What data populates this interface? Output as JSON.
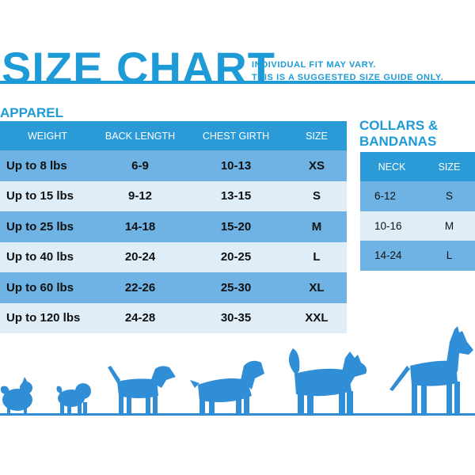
{
  "title": "SIZE CHART",
  "note": {
    "line1": "INDIVIDUAL FIT MAY VARY.",
    "line2": "THIS IS A SUGGESTED SIZE GUIDE ONLY."
  },
  "colors": {
    "accent": "#1e9ad6",
    "header_blue": "#2b9bd8",
    "row_dark": "#6fb3e4",
    "row_light": "#deedf8",
    "dog_blue": "#2f8ed6"
  },
  "apparel": {
    "label": "APPAREL",
    "headers": [
      "WEIGHT",
      "BACK LENGTH",
      "CHEST GIRTH",
      "SIZE"
    ],
    "rows": [
      {
        "weight": "Up to 8 lbs",
        "back": "6-9",
        "chest": "10-13",
        "size": "XS"
      },
      {
        "weight": "Up to 15 lbs",
        "back": "9-12",
        "chest": "13-15",
        "size": "S"
      },
      {
        "weight": "Up to 25 lbs",
        "back": "14-18",
        "chest": "15-20",
        "size": "M"
      },
      {
        "weight": "Up to 40 lbs",
        "back": "20-24",
        "chest": "20-25",
        "size": "L"
      },
      {
        "weight": "Up to 60 lbs",
        "back": "22-26",
        "chest": "25-30",
        "size": "XL"
      },
      {
        "weight": "Up to 120 lbs",
        "back": "24-28",
        "chest": "30-35",
        "size": "XXL"
      }
    ]
  },
  "collars": {
    "label_line1": "COLLARS &",
    "label_line2": "BANDANAS",
    "headers": [
      "NECK",
      "SIZE"
    ],
    "rows": [
      {
        "neck": "6-12",
        "size": "S"
      },
      {
        "neck": "10-16",
        "size": "M"
      },
      {
        "neck": "14-24",
        "size": "L"
      }
    ]
  },
  "dog_icons": [
    "pomeranian-icon",
    "pug-icon",
    "beagle-icon",
    "spaniel-icon",
    "husky-icon",
    "great-dane-icon"
  ]
}
